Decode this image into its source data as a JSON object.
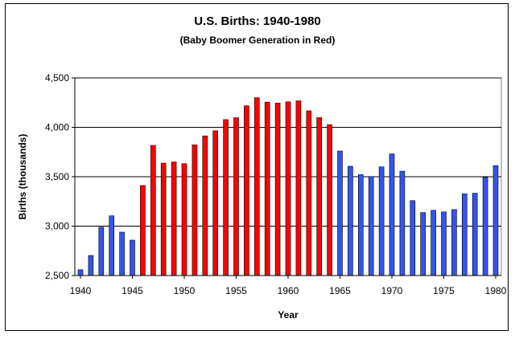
{
  "chart_data": {
    "type": "bar",
    "title": "U.S. Births: 1940-1980",
    "subtitle": "(Baby Boomer Generation in Red)",
    "xlabel": "Year",
    "ylabel": "Births (thousands)",
    "ylim": [
      2500,
      4500
    ],
    "y_ticks": [
      "2,500",
      "3,000",
      "3,500",
      "4,000",
      "4,500"
    ],
    "y_tick_values": [
      2500,
      3000,
      3500,
      4000,
      4500
    ],
    "x_ticks": [
      "1940",
      "1945",
      "1950",
      "1955",
      "1960",
      "1965",
      "1970",
      "1975",
      "1980"
    ],
    "x_tick_values": [
      1940,
      1945,
      1950,
      1955,
      1960,
      1965,
      1970,
      1975,
      1980
    ],
    "grid": "horizontal",
    "colors": {
      "baby_boomer": "#ff0000",
      "other": "#3355ee",
      "bar_outline": "#000000",
      "plot_background": "#ffffff",
      "gridline": "#000000"
    },
    "categories": [
      1940,
      1941,
      1942,
      1943,
      1944,
      1945,
      1946,
      1947,
      1948,
      1949,
      1950,
      1951,
      1952,
      1953,
      1954,
      1955,
      1956,
      1957,
      1958,
      1959,
      1960,
      1961,
      1962,
      1963,
      1964,
      1965,
      1966,
      1967,
      1968,
      1969,
      1970,
      1971,
      1972,
      1973,
      1974,
      1975,
      1976,
      1977,
      1978,
      1979,
      1980
    ],
    "values": [
      2559,
      2703,
      2989,
      3104,
      2939,
      2858,
      3411,
      3817,
      3637,
      3649,
      3632,
      3823,
      3913,
      3965,
      4078,
      4097,
      4218,
      4300,
      4255,
      4245,
      4258,
      4268,
      4167,
      4098,
      4027,
      3760,
      3606,
      3521,
      3502,
      3600,
      3731,
      3556,
      3258,
      3137,
      3160,
      3144,
      3168,
      3327,
      3333,
      3494,
      3612
    ],
    "baby_boomer_years": [
      1946,
      1964
    ]
  }
}
